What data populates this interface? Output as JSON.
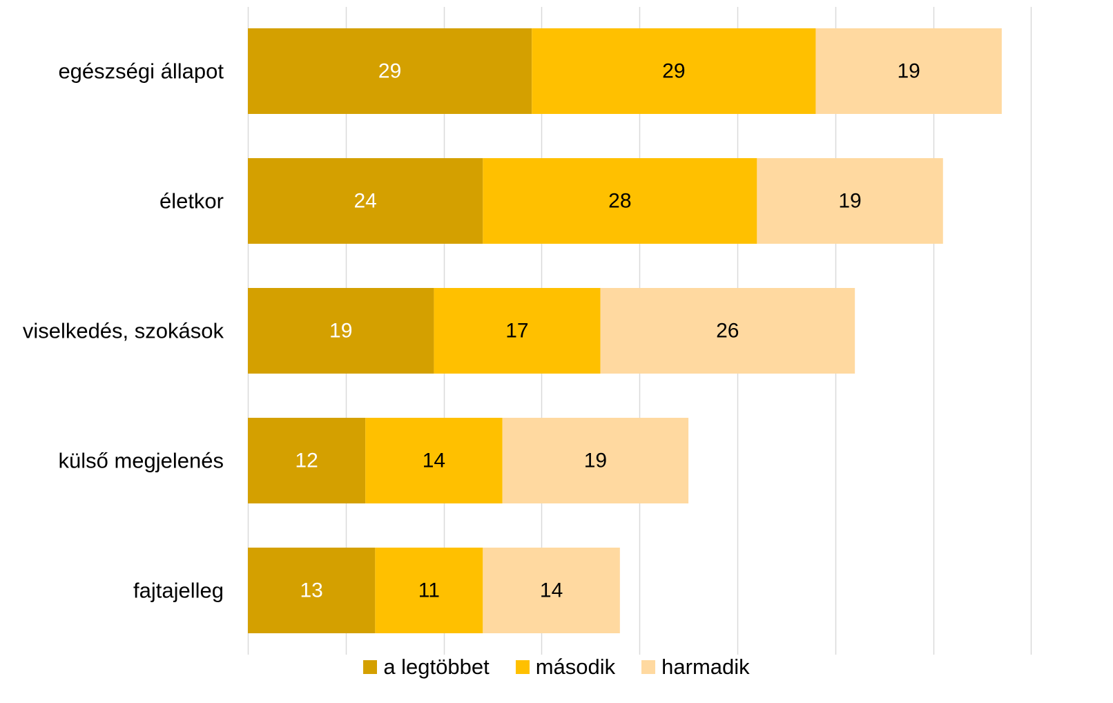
{
  "chart_data": {
    "type": "bar",
    "orientation": "horizontal",
    "stacked": true,
    "categories": [
      "egészségi állapot",
      "életkor",
      "viselkedés, szokások",
      "külső megjelenés",
      "fajtajelleg"
    ],
    "series": [
      {
        "name": "a legtöbbet",
        "values": [
          29,
          24,
          19,
          12,
          13
        ],
        "color": "#D4A000",
        "label_color": "#ffffff"
      },
      {
        "name": "második",
        "values": [
          29,
          28,
          17,
          14,
          11
        ],
        "color": "#FFC000",
        "label_color": "#000000"
      },
      {
        "name": "harmadik",
        "values": [
          19,
          19,
          26,
          19,
          14
        ],
        "color": "#FFD9A0",
        "label_color": "#000000"
      }
    ],
    "xlim": [
      0,
      80
    ],
    "x_gridline_step": 10,
    "grid": true,
    "legend_position": "bottom"
  }
}
